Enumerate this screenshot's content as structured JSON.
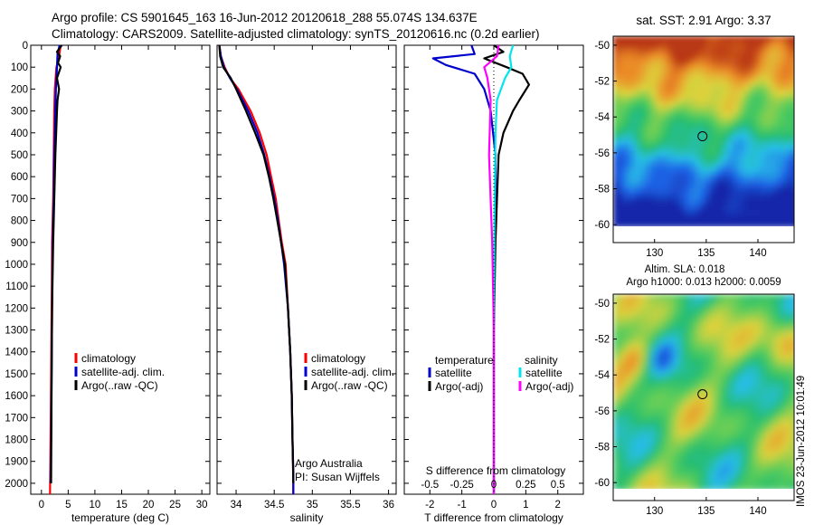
{
  "titles": {
    "line1": "Argo profile: CS 5901645_163 16-Jun-2012 20120618_288 55.074S 134.637E",
    "line2": "Climatology: CARS2009. Satellite-adjusted climatology: synTS_20120616.nc (0.2d earlier)"
  },
  "chart_data": [
    {
      "type": "line",
      "panel": "temperature",
      "xlabel": "temperature (deg C)",
      "ylabel": "",
      "xlim": [
        -2,
        31.5
      ],
      "ylim": [
        2050,
        0
      ],
      "xticks": [
        "0",
        "5",
        "10",
        "15",
        "20",
        "25",
        "30"
      ],
      "yticks": [
        "0",
        "100",
        "200",
        "300",
        "400",
        "500",
        "600",
        "700",
        "800",
        "900",
        "1000",
        "1100",
        "1200",
        "1300",
        "1400",
        "1500",
        "1600",
        "1700",
        "1800",
        "1900",
        "2000"
      ],
      "legend": [
        "climatology",
        "satellite-adj. clim.",
        "Argo(..raw -QC)"
      ],
      "series": [
        {
          "name": "climatology",
          "color": "#ff0000",
          "x": [
            3.6,
            3.3,
            2.8,
            2.5,
            2.4,
            2.3,
            2.2,
            2.0,
            1.9,
            1.8,
            1.7,
            1.6
          ],
          "y": [
            0,
            50,
            100,
            200,
            300,
            500,
            700,
            900,
            1200,
            1500,
            1800,
            2050
          ]
        },
        {
          "name": "satellite-adj. clim.",
          "color": "#0000cc",
          "x": [
            3.4,
            3.0,
            2.9,
            2.7,
            2.6,
            2.4,
            2.3,
            2.1,
            2.0,
            1.9,
            1.8,
            1.7
          ],
          "y": [
            0,
            40,
            100,
            200,
            300,
            500,
            700,
            900,
            1200,
            1500,
            1800,
            2000
          ]
        },
        {
          "name": "Argo(..raw -QC)",
          "color": "#000000",
          "x": [
            3.8,
            2.9,
            3.5,
            3.1,
            3.6,
            2.9,
            3.3,
            3.0,
            2.9,
            2.6,
            2.4,
            2.2,
            2.0,
            1.9,
            1.8
          ],
          "y": [
            0,
            30,
            50,
            80,
            100,
            150,
            200,
            250,
            300,
            500,
            700,
            900,
            1200,
            1500,
            2000
          ]
        }
      ]
    },
    {
      "type": "line",
      "panel": "salinity",
      "xlabel": "salinity",
      "xlim": [
        33.75,
        36.1
      ],
      "ylim": [
        2050,
        0
      ],
      "xticks": [
        "34",
        "34.5",
        "35",
        "35.5",
        "36"
      ],
      "legend": [
        "climatology",
        "satellite-adj. clim.",
        "Argo(..raw -QC)"
      ],
      "series": [
        {
          "name": "climatology",
          "color": "#ff0000",
          "x": [
            33.78,
            33.8,
            33.85,
            33.92,
            34.03,
            34.19,
            34.31,
            34.4,
            34.46,
            34.52,
            34.56,
            34.6,
            34.65,
            34.68,
            34.71,
            34.73,
            34.74,
            34.75,
            34.75
          ],
          "y": [
            0,
            50,
            100,
            150,
            200,
            300,
            400,
            500,
            600,
            700,
            800,
            900,
            1000,
            1200,
            1400,
            1600,
            1800,
            1950,
            2050
          ]
        },
        {
          "name": "satellite-adj. clim.",
          "color": "#0000cc",
          "x": [
            33.78,
            33.8,
            33.84,
            33.92,
            34.01,
            34.16,
            34.28,
            34.37,
            34.44,
            34.5,
            34.55,
            34.59,
            34.63,
            34.68,
            34.71,
            34.73,
            34.74,
            34.75,
            34.75
          ],
          "y": [
            0,
            50,
            100,
            150,
            200,
            300,
            400,
            500,
            600,
            700,
            800,
            900,
            1000,
            1200,
            1400,
            1600,
            1800,
            1950,
            2050
          ]
        },
        {
          "name": "Argo(..raw -QC)",
          "color": "#000000",
          "x": [
            33.78,
            33.79,
            33.83,
            33.93,
            34.0,
            34.13,
            34.25,
            34.36,
            34.43,
            34.49,
            34.54,
            34.59,
            34.64,
            34.68,
            34.71,
            34.73,
            34.74,
            34.75
          ],
          "y": [
            0,
            50,
            100,
            150,
            200,
            300,
            400,
            500,
            600,
            700,
            800,
            900,
            1000,
            1200,
            1400,
            1600,
            1800,
            2000
          ]
        }
      ],
      "annotations": [
        "Argo Australia",
        "PI: Susan Wijffels"
      ]
    },
    {
      "type": "line",
      "panel": "difference",
      "xlabel": "T difference from climatology",
      "xlabel_top": "S difference from climatology",
      "xlim": [
        -2.8,
        2.8
      ],
      "ylim": [
        2050,
        0
      ],
      "xticks": [
        "-2",
        "-1",
        "0",
        "1",
        "2"
      ],
      "xticks_s": [
        "-0.5",
        "-0.25",
        "0",
        "0.25",
        "0.5"
      ],
      "legend_t": {
        "title": "temperature",
        "entries": [
          "satellite",
          "Argo(-adj)"
        ]
      },
      "legend_s": {
        "title": "salinity",
        "entries": [
          "satellite",
          "Argo(-adj)"
        ]
      },
      "series": [
        {
          "name": "temperature satellite",
          "color": "#0000cc",
          "x": [
            -0.7,
            -0.6,
            -1.9,
            -1.5,
            -0.6,
            -0.3,
            -0.1,
            0.05,
            0.05,
            0,
            0,
            0
          ],
          "y": [
            0,
            40,
            60,
            90,
            130,
            200,
            300,
            500,
            800,
            1200,
            1600,
            2050
          ]
        },
        {
          "name": "temperature Argo(-adj)",
          "color": "#000000",
          "x": [
            0,
            0.3,
            -0.3,
            0.4,
            0.9,
            1.1,
            0.8,
            0.6,
            0.3,
            0.15,
            0.1,
            0.05,
            0,
            0
          ],
          "y": [
            0,
            30,
            60,
            100,
            130,
            180,
            250,
            300,
            400,
            500,
            700,
            900,
            1300,
            2050
          ]
        },
        {
          "name": "salinity satellite",
          "color": "#00e5ee",
          "x": [
            0.6,
            0.5,
            0.55,
            0.35,
            0.1,
            0.05,
            0.02,
            0,
            0
          ],
          "y": [
            0,
            50,
            100,
            150,
            250,
            400,
            800,
            1300,
            2050
          ]
        },
        {
          "name": "salinity Argo(-adj)",
          "color": "#ff00ff",
          "x": [
            0.15,
            0.1,
            -0.3,
            -0.2,
            -0.1,
            -0.15,
            -0.05,
            0,
            0
          ],
          "y": [
            0,
            50,
            100,
            150,
            250,
            500,
            900,
            1300,
            2050
          ]
        }
      ]
    },
    {
      "type": "heatmap",
      "panel": "sst-map",
      "title": "sat. SST: 2.91  Argo: 3.37",
      "xlim": [
        126,
        143.5
      ],
      "ylim": [
        -61,
        -49.5
      ],
      "xticks": [
        "130",
        "135",
        "140"
      ],
      "yticks": [
        "-50",
        "-52",
        "-54",
        "-56",
        "-58",
        "-60"
      ],
      "marker": {
        "lon": 134.637,
        "lat": -55.074
      }
    },
    {
      "type": "heatmap",
      "panel": "sla-map",
      "title_line1": "Altim. SLA: 0.018",
      "title_line2": "Argo h1000: 0.013 h2000: 0.0059",
      "xlim": [
        126,
        143.5
      ],
      "ylim": [
        -61,
        -49.5
      ],
      "xticks": [
        "130",
        "135",
        "140"
      ],
      "yticks": [
        "-50",
        "-52",
        "-54",
        "-56",
        "-58",
        "-60"
      ],
      "marker": {
        "lon": 134.637,
        "lat": -55.074
      }
    }
  ],
  "stamp": "IMOS 23-Jun-2012 10:01:49"
}
